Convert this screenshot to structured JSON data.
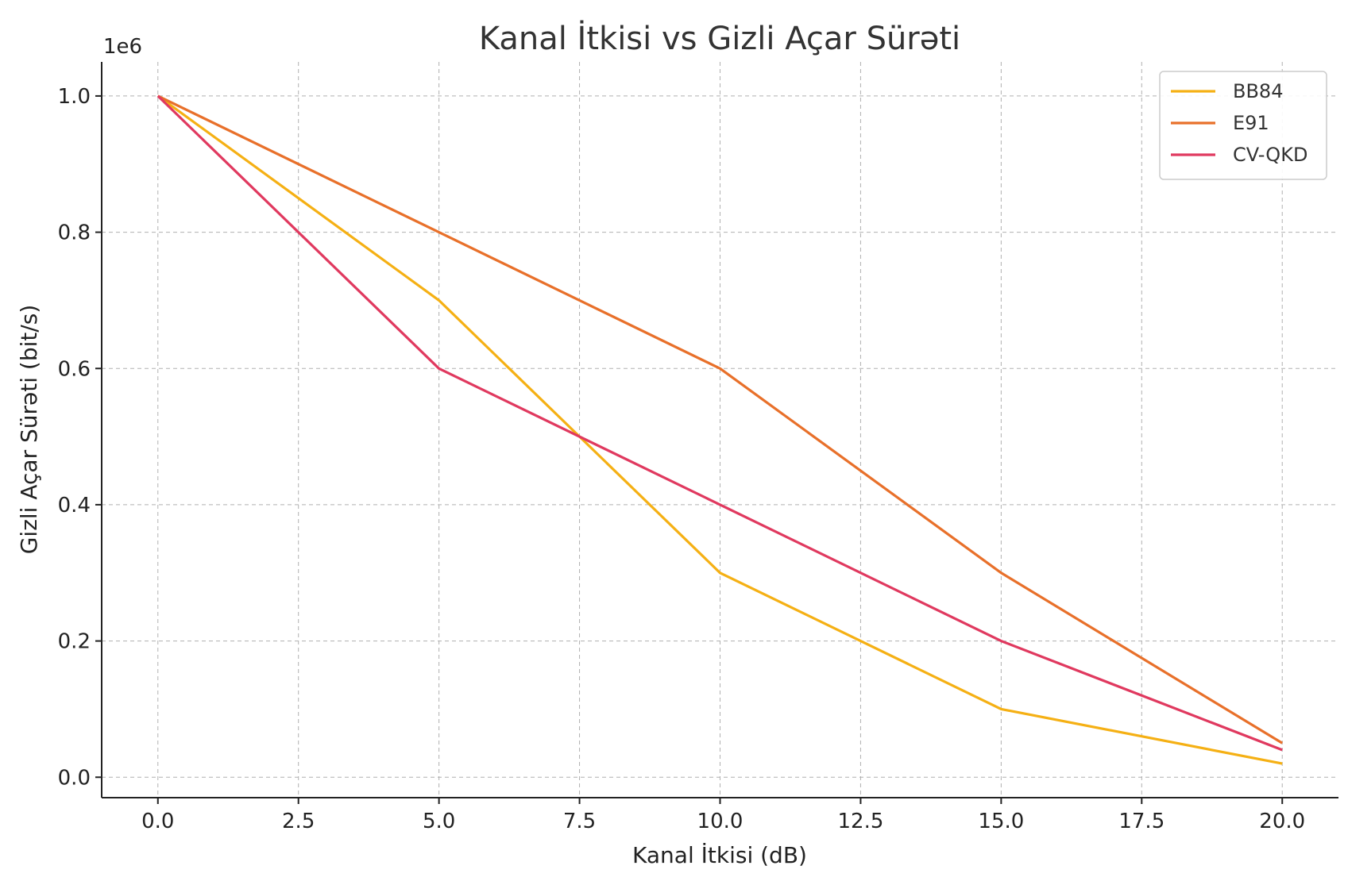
{
  "chart_data": {
    "type": "line",
    "title": "Kanal İtkisi vs Gizli Açar Sürəti",
    "xlabel": "Kanal İtkisi (dB)",
    "ylabel": "Gizli Açar Sürəti (bit/s)",
    "y_offset_label": "1e6",
    "x": [
      0,
      5,
      10,
      15,
      20
    ],
    "xlim": [
      -1,
      21
    ],
    "ylim": [
      -30000,
      1050000
    ],
    "x_ticks": [
      0,
      2.5,
      5,
      7.5,
      10,
      12.5,
      15,
      17.5,
      20
    ],
    "x_tick_labels": [
      "0.0",
      "2.5",
      "5.0",
      "7.5",
      "10.0",
      "12.5",
      "15.0",
      "17.5",
      "20.0"
    ],
    "y_ticks": [
      0,
      200000,
      400000,
      600000,
      800000,
      1000000
    ],
    "y_tick_labels": [
      "0.0",
      "0.2",
      "0.4",
      "0.6",
      "0.8",
      "1.0"
    ],
    "grid": true,
    "legend_position": "top-right",
    "series": [
      {
        "name": "BB84",
        "color": "#f5b014",
        "values": [
          1000000,
          700000,
          300000,
          100000,
          20000
        ]
      },
      {
        "name": "E91",
        "color": "#e8702a",
        "values": [
          1000000,
          800000,
          600000,
          300000,
          50000
        ]
      },
      {
        "name": "CV-QKD",
        "color": "#e0395f",
        "values": [
          1000000,
          600000,
          400000,
          200000,
          40000
        ]
      }
    ]
  }
}
